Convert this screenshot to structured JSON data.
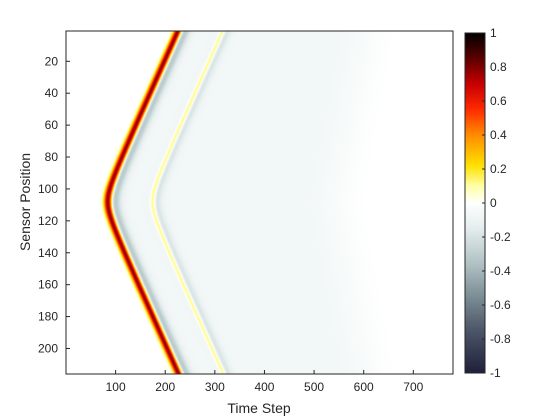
{
  "chart_data": {
    "type": "heatmap",
    "title": "",
    "xlabel": "Time Step",
    "ylabel": "Sensor Position",
    "xlim": [
      0,
      780
    ],
    "ylim": [
      1,
      216
    ],
    "y_direction": "reverse",
    "xticks": [
      100,
      200,
      300,
      400,
      500,
      600,
      700
    ],
    "yticks": [
      20,
      40,
      60,
      80,
      100,
      120,
      140,
      160,
      180,
      200
    ],
    "colormap": "diverging hot-bone",
    "clim": [
      -1,
      1
    ],
    "colorbar": {
      "ticks": [
        1,
        0.8,
        0.6,
        0.4,
        0.2,
        0,
        -0.2,
        -0.4,
        -0.6,
        -0.8,
        -1
      ],
      "tick_labels": [
        "1",
        "0.8",
        "0.6",
        "0.4",
        "0.2",
        "0",
        "-0.2",
        "-0.4",
        "-0.6",
        "-0.8",
        "-1"
      ],
      "stops": [
        {
          "v": 1.0,
          "color": "#000000"
        },
        {
          "v": 0.85,
          "color": "#5c0000"
        },
        {
          "v": 0.7,
          "color": "#c80000"
        },
        {
          "v": 0.55,
          "color": "#ff2a00"
        },
        {
          "v": 0.4,
          "color": "#ff8c00"
        },
        {
          "v": 0.22,
          "color": "#ffe100"
        },
        {
          "v": 0.1,
          "color": "#ffffa8"
        },
        {
          "v": 0.0,
          "color": "#ffffff"
        },
        {
          "v": -0.15,
          "color": "#e4eded"
        },
        {
          "v": -0.35,
          "color": "#b2c4c6"
        },
        {
          "v": -0.55,
          "color": "#7c8e95"
        },
        {
          "v": -0.75,
          "color": "#4c5668"
        },
        {
          "v": -1.0,
          "color": "#20203a"
        }
      ]
    },
    "wavefronts": [
      {
        "apex_position": 108,
        "apex_time": 85,
        "slope": 1.45,
        "curvature": 10,
        "amplitude": 1.0,
        "width": 6,
        "tail_amplitude": -0.35,
        "tail_offset": 9,
        "tail_width": 10
      },
      {
        "apex_position": 108,
        "apex_time": 175,
        "slope": 1.45,
        "curvature": 10,
        "amplitude": 0.3,
        "width": 4,
        "tail_amplitude": -0.15,
        "tail_offset": 6,
        "tail_width": 8
      }
    ],
    "background_haze": {
      "amplitude": -0.07,
      "right_edge_apex": 600,
      "right_edge_slope": 1.0
    }
  }
}
